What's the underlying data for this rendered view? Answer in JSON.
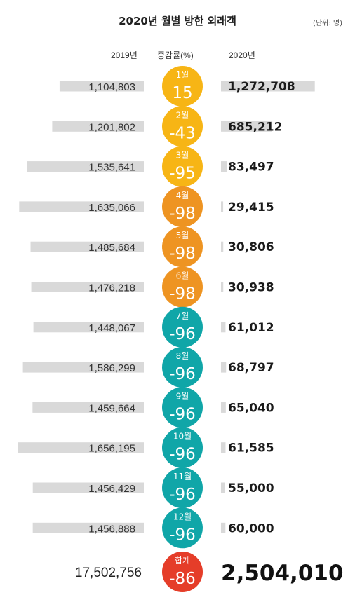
{
  "title": "2020년 월별 방한 외래객",
  "unit": "(단위: 명)",
  "headers": {
    "y2019": "2019년",
    "rate": "증감률(%)",
    "y2020": "2020년"
  },
  "colors": {
    "bar": "#d9d9d9",
    "yellow": "#f7b515",
    "orange": "#ee9422",
    "teal": "#10a6a8",
    "red": "#e53d29"
  },
  "chart_data": {
    "type": "bar",
    "title": "2020년 월별 방한 외래객",
    "categories": [
      "1월",
      "2월",
      "3월",
      "4월",
      "5월",
      "6월",
      "7월",
      "8월",
      "9월",
      "10월",
      "11월",
      "12월"
    ],
    "series": [
      {
        "name": "2019년",
        "values": [
          1104803,
          1201802,
          1535641,
          1635066,
          1485684,
          1476218,
          1448067,
          1586299,
          1459664,
          1656195,
          1456429,
          1456888
        ],
        "labels": [
          "1,104,803",
          "1,201,802",
          "1,535,641",
          "1,635,066",
          "1,485,684",
          "1,476,218",
          "1,448,067",
          "1,586,299",
          "1,459,664",
          "1,656,195",
          "1,456,429",
          "1,456,888"
        ]
      },
      {
        "name": "2020년",
        "values": [
          1272708,
          685212,
          83497,
          29415,
          30806,
          30938,
          61012,
          68797,
          65040,
          61585,
          55000,
          60000
        ],
        "labels": [
          "1,272,708",
          "685,212",
          "83,497",
          "29,415",
          "30,806",
          "30,938",
          "61,012",
          "68,797",
          "65,040",
          "61,585",
          "55,000",
          "60,000"
        ]
      },
      {
        "name": "증감률(%)",
        "values": [
          15,
          -43,
          -95,
          -98,
          -98,
          -98,
          -96,
          -96,
          -96,
          -96,
          -96,
          -96
        ],
        "labels": [
          "15",
          "-43",
          "-95",
          "-98",
          "-98",
          "-98",
          "-96",
          "-96",
          "-96",
          "-96",
          "-96",
          "-96"
        ],
        "circle_colors": [
          "yellow",
          "yellow",
          "yellow",
          "orange",
          "orange",
          "orange",
          "teal",
          "teal",
          "teal",
          "teal",
          "teal",
          "teal"
        ]
      }
    ],
    "total": {
      "label": "합계",
      "y2019": "17,502,756",
      "y2020": "2,504,010",
      "rate": "-86",
      "color": "red"
    }
  }
}
